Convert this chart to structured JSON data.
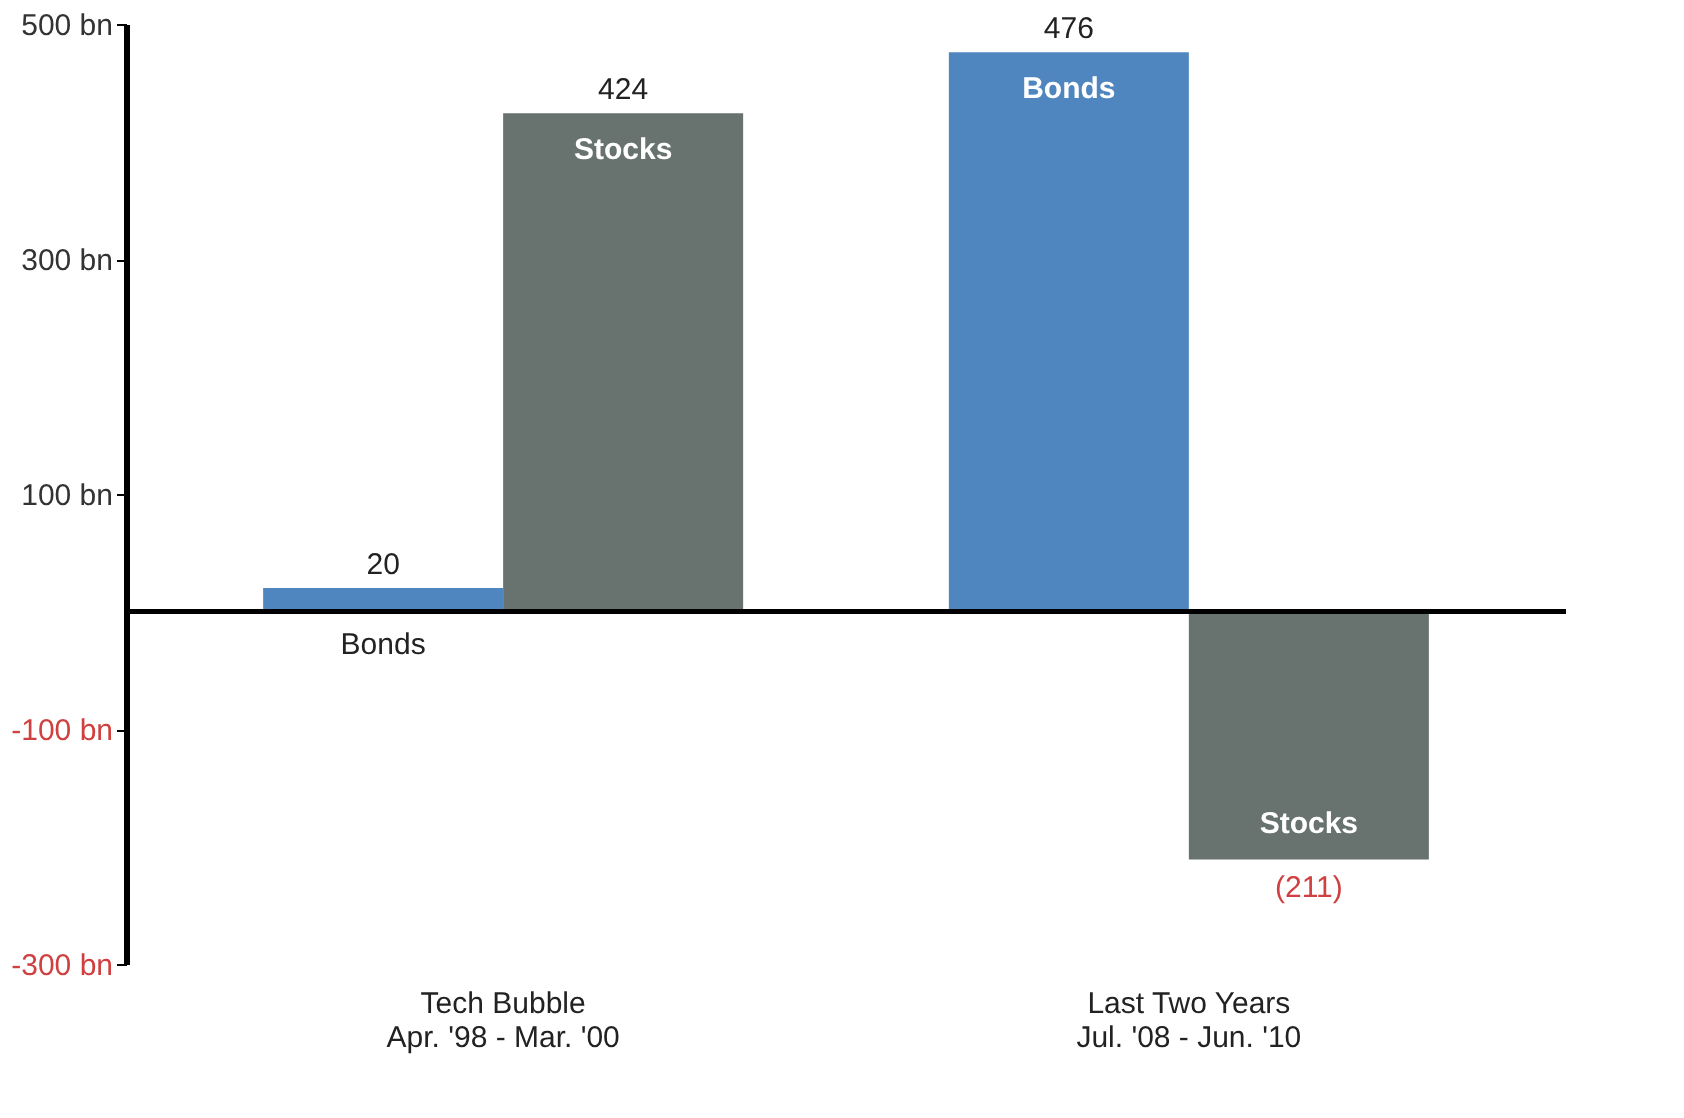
{
  "chart_data": {
    "type": "bar",
    "categories": [
      "Tech Bubble\nApr. '98 - Mar. '00",
      "Last Two Years\nJul. '08 - Jun. '10"
    ],
    "series": [
      {
        "name": "Bonds",
        "color": "#4f86c0",
        "values": [
          20,
          476
        ],
        "value_labels": [
          "20",
          "476"
        ]
      },
      {
        "name": "Stocks",
        "color": "#68726e",
        "values": [
          424,
          -211
        ],
        "value_labels": [
          "424",
          "(211)"
        ]
      }
    ],
    "ylim": [
      -300,
      500
    ],
    "yticks": [
      {
        "value": 500,
        "label": "500 bn"
      },
      {
        "value": 300,
        "label": "300 bn"
      },
      {
        "value": 100,
        "label": "100 bn"
      },
      {
        "value": -100,
        "label": "-100 bn"
      },
      {
        "value": -300,
        "label": "-300 bn"
      }
    ],
    "grid": false,
    "legend": false
  }
}
